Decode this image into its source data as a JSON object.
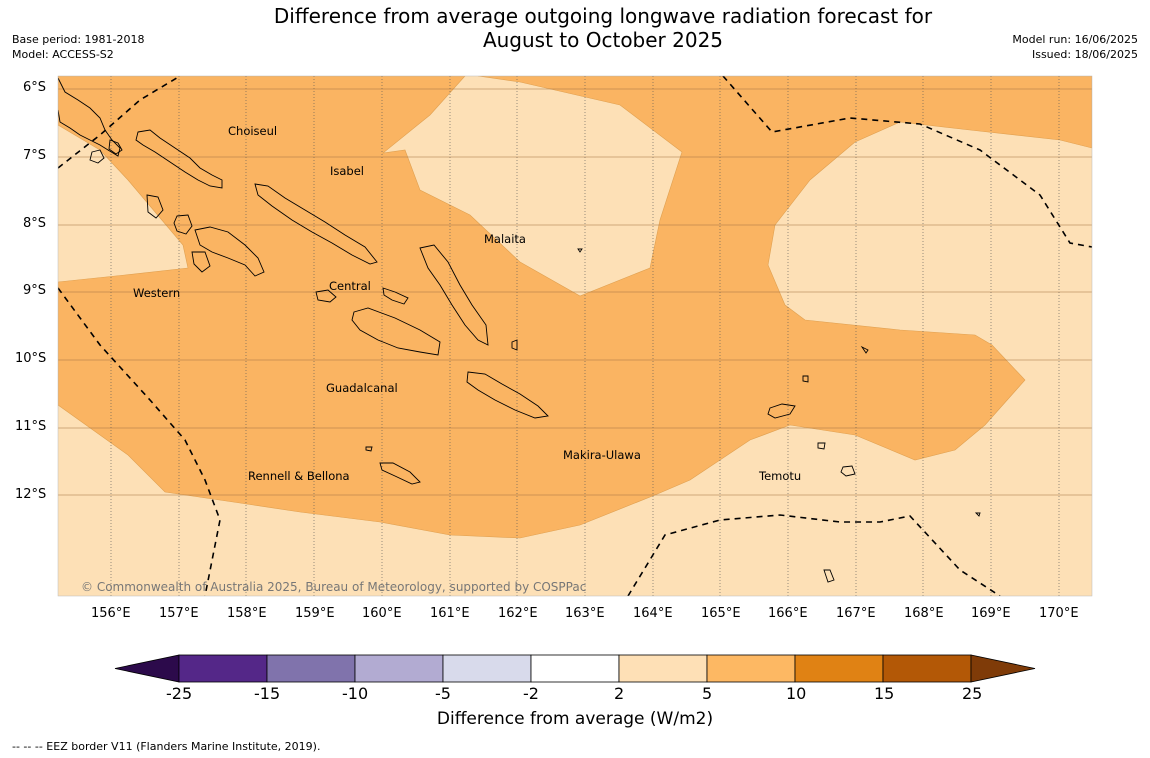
{
  "title": {
    "line1": "Difference from average outgoing longwave radiation forecast for",
    "line2": "August to October 2025"
  },
  "meta": {
    "base_period": "Base period: 1981-2018",
    "model": "Model: ACCESS-S2",
    "model_run": "Model run: 16/06/2025",
    "issued": "Issued: 18/06/2025"
  },
  "map": {
    "lat_labels": [
      "6°S",
      "7°S",
      "8°S",
      "9°S",
      "10°S",
      "11°S",
      "12°S"
    ],
    "lon_labels": [
      "156°E",
      "157°E",
      "158°E",
      "159°E",
      "160°E",
      "161°E",
      "162°E",
      "163°E",
      "164°E",
      "165°E",
      "166°E",
      "167°E",
      "168°E",
      "169°E",
      "170°E"
    ],
    "regions": [
      "Choiseul",
      "Isabel",
      "Malaita",
      "Central",
      "Western",
      "Guadalcanal",
      "Makira-Ulawa",
      "Rennell & Bellona",
      "Temotu"
    ],
    "copyright": "© Commonwealth of Australia 2025, Bureau of Meteorology, supported by COSPPac",
    "colors": {
      "band_2_5": "#fde0b6",
      "band_5_10": "#fab462",
      "land_outline": "#000000"
    }
  },
  "colorbar": {
    "ticks": [
      "-25",
      "-15",
      "-10",
      "-5",
      "-2",
      "2",
      "5",
      "10",
      "15",
      "25"
    ],
    "colors": [
      "#2c0a4b",
      "#542788",
      "#8073ac",
      "#b2abd2",
      "#d8daeb",
      "#ffffff",
      "#fee0b6",
      "#fdb863",
      "#e08214",
      "#b35806",
      "#7f3b08"
    ],
    "label": "Difference from average (W/m2)"
  },
  "footnote": "--  --  -- EEZ border V11 (Flanders Marine Institute, 2019)."
}
